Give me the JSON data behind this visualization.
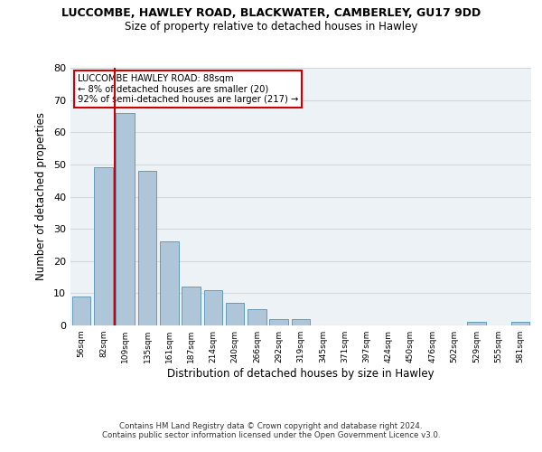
{
  "title": "LUCCOMBE, HAWLEY ROAD, BLACKWATER, CAMBERLEY, GU17 9DD",
  "subtitle": "Size of property relative to detached houses in Hawley",
  "xlabel": "Distribution of detached houses by size in Hawley",
  "ylabel": "Number of detached properties",
  "footnote1": "Contains HM Land Registry data © Crown copyright and database right 2024.",
  "footnote2": "Contains public sector information licensed under the Open Government Licence v3.0.",
  "annotation_line1": "LUCCOMBE HAWLEY ROAD: 88sqm",
  "annotation_line2": "← 8% of detached houses are smaller (20)",
  "annotation_line3": "92% of semi-detached houses are larger (217) →",
  "bar_labels": [
    "56sqm",
    "82sqm",
    "109sqm",
    "135sqm",
    "161sqm",
    "187sqm",
    "214sqm",
    "240sqm",
    "266sqm",
    "292sqm",
    "319sqm",
    "345sqm",
    "371sqm",
    "397sqm",
    "424sqm",
    "450sqm",
    "476sqm",
    "502sqm",
    "529sqm",
    "555sqm",
    "581sqm"
  ],
  "bar_values": [
    9,
    49,
    66,
    48,
    26,
    12,
    11,
    7,
    5,
    2,
    2,
    0,
    0,
    0,
    0,
    0,
    0,
    0,
    1,
    0,
    1
  ],
  "bar_color": "#aec6d8",
  "bar_edge_color": "#6699bb",
  "vline_x": 1.5,
  "vline_color": "#cc0000",
  "ylim": [
    0,
    80
  ],
  "yticks": [
    0,
    10,
    20,
    30,
    40,
    50,
    60,
    70,
    80
  ],
  "grid_color": "#d0d8e0",
  "background_color": "#edf2f7",
  "annotation_box_color": "#ffffff",
  "annotation_border_color": "#cc0000"
}
